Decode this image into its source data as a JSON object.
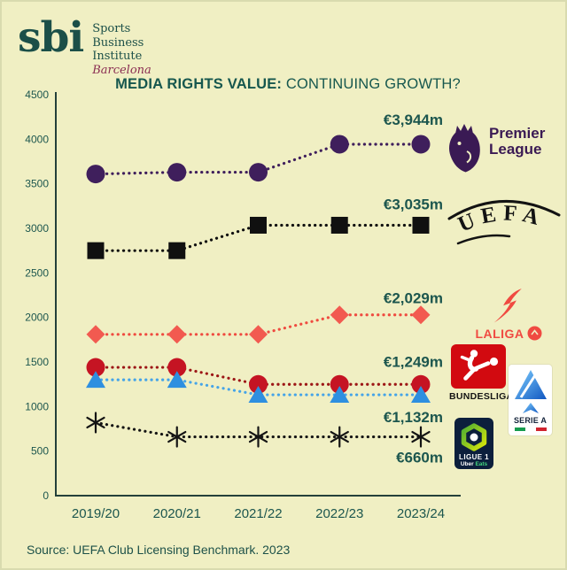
{
  "header": {
    "logo": {
      "abbr": "sbi",
      "line1": "Sports",
      "line2": "Business",
      "line3": "Institute",
      "city": "Barcelona"
    }
  },
  "title": {
    "bold": "MEDIA RIGHTS VALUE:",
    "regular": " CONTINUING GROWTH?"
  },
  "source": {
    "text": "Source: UEFA Club Licensing Benchmark. 2023"
  },
  "colors": {
    "background": "#f0efc3",
    "teal_text": "#1c564e",
    "barcelona_maroon": "#8a2d52",
    "premier_league_purple": "#3a1a54",
    "uefa_black": "#121212",
    "laliga_coral": "#f04a41",
    "bundesliga_red": "#c51423",
    "serie_a_blue": "#2e8fe0",
    "ligue1_black": "#141414"
  },
  "chart_data": {
    "type": "line",
    "title": "MEDIA RIGHTS VALUE: CONTINUING GROWTH?",
    "x_categories": [
      "2019/20",
      "2020/21",
      "2021/22",
      "2022/23",
      "2023/24"
    ],
    "ylim": [
      0,
      4500
    ],
    "ytick_step": 500,
    "grid": false,
    "legend_position": "right-logos",
    "line_style": "dotted",
    "series": [
      {
        "name": "Premier League",
        "marker": "circle",
        "color": "#3f1f5c",
        "line_color": "#3f1f5c",
        "values": [
          3610,
          3630,
          3630,
          3944,
          3944
        ],
        "value_label": "€3,944m",
        "label_dy": -22
      },
      {
        "name": "UEFA",
        "marker": "square",
        "color": "#101010",
        "line_color": "#101010",
        "values": [
          2750,
          2750,
          3035,
          3035,
          3035
        ],
        "value_label": "€3,035m",
        "label_dy": -18
      },
      {
        "name": "LaLiga",
        "marker": "diamond",
        "color": "#f25a50",
        "line_color": "#ef4b40",
        "values": [
          1810,
          1810,
          1810,
          2029,
          2029
        ],
        "value_label": "€2,029m",
        "label_dy": -13
      },
      {
        "name": "Bundesliga",
        "marker": "circle",
        "color": "#c51423",
        "line_color": "#9c1616",
        "values": [
          1440,
          1440,
          1249,
          1249,
          1249
        ],
        "value_label": "€1,249m",
        "label_dy": -20
      },
      {
        "name": "Serie A",
        "marker": "triangle",
        "color": "#2e8fe0",
        "line_color": "#45a4e8",
        "values": [
          1300,
          1300,
          1132,
          1132,
          1132
        ],
        "value_label": "€1,132m",
        "label_dy": 31
      },
      {
        "name": "Ligue 1",
        "marker": "asterisk",
        "color": "#141414",
        "line_color": "#141414",
        "values": [
          820,
          660,
          660,
          660,
          660
        ],
        "value_label": "€660m",
        "label_dy": 29
      }
    ]
  },
  "logos": {
    "premier_league": {
      "line1": "Premier",
      "line2": "League"
    },
    "uefa": {
      "text": "UEFA"
    },
    "laliga": {
      "text": "LALIGA"
    },
    "bundesliga": {
      "text": "BUNDESLIGA"
    },
    "serie_a": {
      "text": "SERIE A"
    },
    "ligue1": {
      "title": "LIGUE 1",
      "uber": "Uber",
      "eats": "Eats"
    }
  }
}
